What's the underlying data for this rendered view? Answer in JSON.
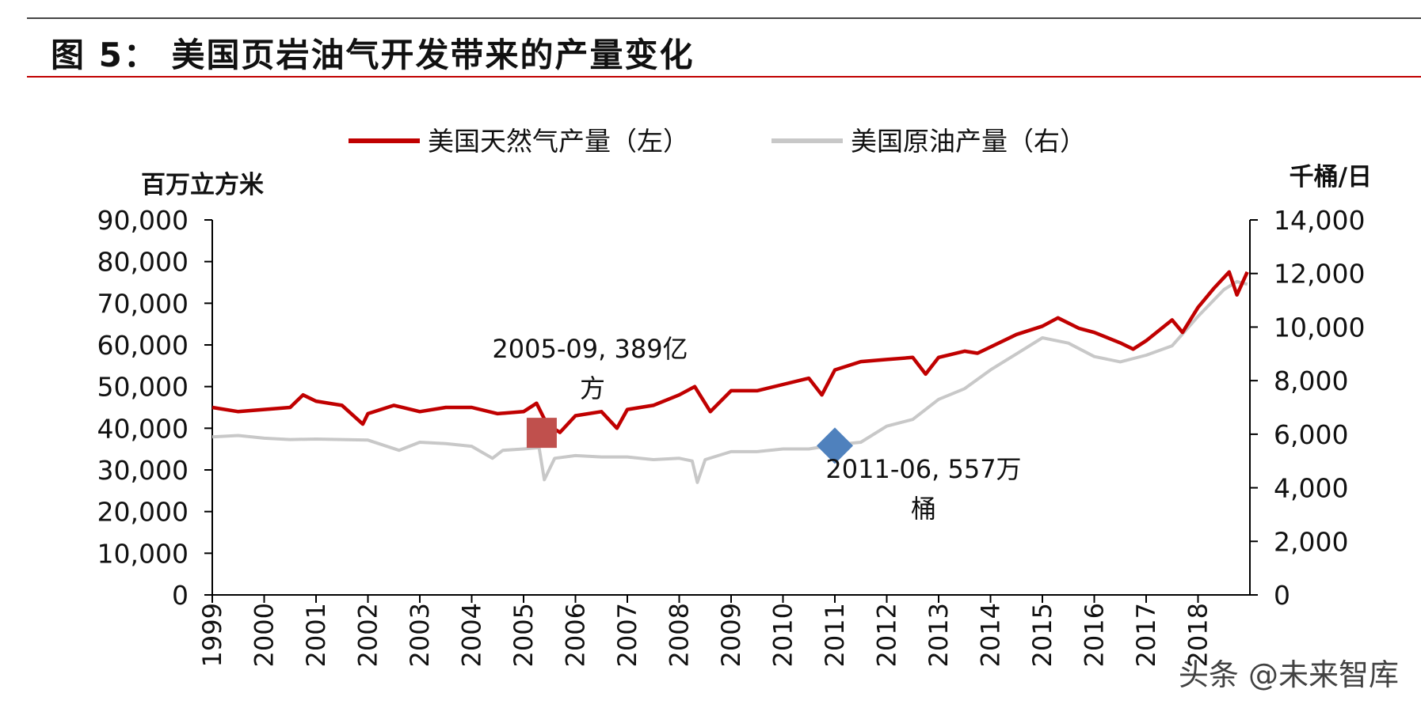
{
  "figure": {
    "title": "图 5： 美国页岩油气开发带来的产量变化"
  },
  "watermark": "头条 @未来智库",
  "chart_data": {
    "type": "line",
    "x_range": [
      1999,
      2019
    ],
    "x_tick_labels": [
      "1999",
      "2000",
      "2001",
      "2002",
      "2003",
      "2004",
      "2005",
      "2006",
      "2007",
      "2008",
      "2009",
      "2010",
      "2011",
      "2012",
      "2013",
      "2014",
      "2015",
      "2016",
      "2017",
      "2018"
    ],
    "left_axis": {
      "unit_label": "百万立方米",
      "range": [
        0,
        90000
      ],
      "tick_labels": [
        "0",
        "10,000",
        "20,000",
        "30,000",
        "40,000",
        "50,000",
        "60,000",
        "70,000",
        "80,000",
        "90,000"
      ]
    },
    "right_axis": {
      "unit_label": "千桶/日",
      "range": [
        0,
        14000
      ],
      "tick_labels": [
        "0",
        "2,000",
        "4,000",
        "6,000",
        "8,000",
        "10,000",
        "12,000",
        "14,000"
      ]
    },
    "series": [
      {
        "name": "美国天然气产量（左）",
        "axis": "left",
        "color": "#c00000",
        "points": [
          [
            1999.0,
            45000
          ],
          [
            1999.5,
            44000
          ],
          [
            2000.0,
            44500
          ],
          [
            2000.5,
            45000
          ],
          [
            2000.75,
            48000
          ],
          [
            2001.0,
            46500
          ],
          [
            2001.5,
            45500
          ],
          [
            2001.9,
            41000
          ],
          [
            2002.0,
            43500
          ],
          [
            2002.5,
            45500
          ],
          [
            2003.0,
            44000
          ],
          [
            2003.5,
            45000
          ],
          [
            2004.0,
            45000
          ],
          [
            2004.5,
            43500
          ],
          [
            2005.0,
            44000
          ],
          [
            2005.25,
            46000
          ],
          [
            2005.45,
            41000
          ],
          [
            2005.7,
            39000
          ],
          [
            2006.0,
            43000
          ],
          [
            2006.5,
            44000
          ],
          [
            2006.8,
            40000
          ],
          [
            2007.0,
            44500
          ],
          [
            2007.5,
            45500
          ],
          [
            2008.0,
            48000
          ],
          [
            2008.3,
            50000
          ],
          [
            2008.6,
            44000
          ],
          [
            2009.0,
            49000
          ],
          [
            2009.5,
            49000
          ],
          [
            2010.0,
            50500
          ],
          [
            2010.5,
            52000
          ],
          [
            2010.75,
            48000
          ],
          [
            2011.0,
            54000
          ],
          [
            2011.5,
            56000
          ],
          [
            2012.0,
            56500
          ],
          [
            2012.5,
            57000
          ],
          [
            2012.75,
            53000
          ],
          [
            2013.0,
            57000
          ],
          [
            2013.5,
            58500
          ],
          [
            2013.75,
            58000
          ],
          [
            2014.0,
            59500
          ],
          [
            2014.5,
            62500
          ],
          [
            2015.0,
            64500
          ],
          [
            2015.3,
            66500
          ],
          [
            2015.7,
            64000
          ],
          [
            2016.0,
            63000
          ],
          [
            2016.5,
            60500
          ],
          [
            2016.75,
            59000
          ],
          [
            2017.0,
            61000
          ],
          [
            2017.5,
            66000
          ],
          [
            2017.7,
            63000
          ],
          [
            2018.0,
            69000
          ],
          [
            2018.3,
            73500
          ],
          [
            2018.6,
            77500
          ],
          [
            2018.75,
            72000
          ],
          [
            2018.95,
            77500
          ]
        ]
      },
      {
        "name": "美国原油产量（右）",
        "axis": "right",
        "color": "#c8c8c8",
        "points": [
          [
            1999.0,
            5900
          ],
          [
            1999.5,
            5950
          ],
          [
            2000.0,
            5850
          ],
          [
            2000.5,
            5800
          ],
          [
            2001.0,
            5820
          ],
          [
            2001.5,
            5800
          ],
          [
            2002.0,
            5780
          ],
          [
            2002.6,
            5400
          ],
          [
            2003.0,
            5700
          ],
          [
            2003.5,
            5650
          ],
          [
            2004.0,
            5550
          ],
          [
            2004.4,
            5100
          ],
          [
            2004.6,
            5400
          ],
          [
            2005.0,
            5450
          ],
          [
            2005.3,
            5500
          ],
          [
            2005.4,
            4300
          ],
          [
            2005.6,
            5100
          ],
          [
            2006.0,
            5200
          ],
          [
            2006.5,
            5150
          ],
          [
            2007.0,
            5150
          ],
          [
            2007.5,
            5050
          ],
          [
            2008.0,
            5100
          ],
          [
            2008.25,
            5000
          ],
          [
            2008.35,
            4200
          ],
          [
            2008.5,
            5050
          ],
          [
            2009.0,
            5350
          ],
          [
            2009.5,
            5350
          ],
          [
            2010.0,
            5450
          ],
          [
            2010.5,
            5450
          ],
          [
            2011.0,
            5600
          ],
          [
            2011.5,
            5700
          ],
          [
            2012.0,
            6300
          ],
          [
            2012.5,
            6550
          ],
          [
            2013.0,
            7300
          ],
          [
            2013.5,
            7700
          ],
          [
            2014.0,
            8400
          ],
          [
            2014.5,
            9000
          ],
          [
            2015.0,
            9600
          ],
          [
            2015.5,
            9400
          ],
          [
            2016.0,
            8900
          ],
          [
            2016.5,
            8700
          ],
          [
            2017.0,
            8950
          ],
          [
            2017.5,
            9300
          ],
          [
            2018.0,
            10400
          ],
          [
            2018.5,
            11400
          ],
          [
            2018.75,
            11700
          ],
          [
            2018.95,
            11600
          ]
        ]
      }
    ],
    "annotations": [
      {
        "text_lines": [
          "2005-09, 389亿",
          "方"
        ],
        "marker": "square",
        "color": "#c0504d",
        "x": 2005.35,
        "y": 38900,
        "axis": "left"
      },
      {
        "text_lines": [
          "2011-06, 557万",
          "桶"
        ],
        "marker": "diamond",
        "color": "#4f81bd",
        "x": 2011.0,
        "y": 5570,
        "axis": "right"
      }
    ],
    "legend": {
      "position": "top"
    },
    "grid": false
  }
}
